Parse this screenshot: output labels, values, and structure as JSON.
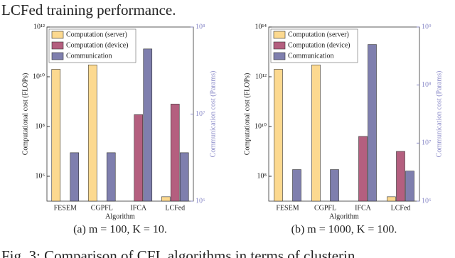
{
  "header_text": "LCFed training performance.",
  "footer_text": "Fig. 3: Comparison of CFL algorithms in terms of clusterin",
  "chart_data": [
    {
      "type": "bar",
      "caption": "(a) m = 100, K = 10.",
      "x_label": "Algorithm",
      "y_label": "Computational cost (FLOPs)",
      "y2_label": "Communication cost (Params)",
      "log_scale": true,
      "legend": "upper left",
      "y2_color": "#8b8bc9",
      "categories": [
        "FESEM",
        "CGPFL",
        "IFCA",
        "LCFed"
      ],
      "ylim": [
        100000,
        1000000000000.0
      ],
      "yticks": [
        {
          "value": 1000000,
          "label": "10⁶"
        },
        {
          "value": 100000000,
          "label": "10⁸"
        },
        {
          "value": 10000000000,
          "label": "10¹⁰"
        },
        {
          "value": 1000000000000.0,
          "label": "10¹²"
        }
      ],
      "y2lim": [
        1000000,
        100000000
      ],
      "y2ticks": [
        {
          "value": 1000000,
          "label": "10⁶"
        },
        {
          "value": 10000000,
          "label": "10⁷"
        },
        {
          "value": 100000000,
          "label": "10⁸"
        }
      ],
      "series": [
        {
          "name": "Computation (server)",
          "color": "#fcd990",
          "values": [
            20000000000,
            30000000000,
            null,
            150000
          ]
        },
        {
          "name": "Computation (device)",
          "color": "#b45f7f",
          "values": [
            null,
            null,
            300000000,
            800000000
          ]
        },
        {
          "name": "Communication",
          "color": "#7f7fae",
          "axis": "y2",
          "values": [
            3600000,
            3600000,
            56000000,
            3600000
          ]
        }
      ]
    },
    {
      "type": "bar",
      "caption": "(b) m = 1000, K = 100.",
      "x_label": "Algorithm",
      "y_label": "Computational cost (FLOPs)",
      "y2_label": "Communication cost (Params)",
      "log_scale": true,
      "legend": "upper left",
      "y2_color": "#8b8bc9",
      "categories": [
        "FESEM",
        "CGPFL",
        "IFCA",
        "LCFed"
      ],
      "ylim": [
        10000000,
        100000000000000.0
      ],
      "yticks": [
        {
          "value": 100000000,
          "label": "10⁸"
        },
        {
          "value": 10000000000,
          "label": "10¹⁰"
        },
        {
          "value": 1000000000000.0,
          "label": "10¹²"
        },
        {
          "value": 100000000000000.0,
          "label": "10¹⁴"
        }
      ],
      "y2lim": [
        1000000,
        1000000000
      ],
      "y2ticks": [
        {
          "value": 1000000,
          "label": "10⁶"
        },
        {
          "value": 10000000,
          "label": "10⁷"
        },
        {
          "value": 100000000,
          "label": "10⁸"
        },
        {
          "value": 1000000000,
          "label": "10⁹"
        }
      ],
      "series": [
        {
          "name": "Computation (server)",
          "color": "#fcd990",
          "values": [
            2000000000000.0,
            3000000000000.0,
            null,
            15000000
          ]
        },
        {
          "name": "Computation (device)",
          "color": "#b45f7f",
          "values": [
            null,
            null,
            4000000000,
            1000000000
          ]
        },
        {
          "name": "Communication",
          "color": "#7f7fae",
          "axis": "y2",
          "values": [
            3500000,
            3500000,
            500000000,
            3300000
          ]
        }
      ]
    }
  ]
}
